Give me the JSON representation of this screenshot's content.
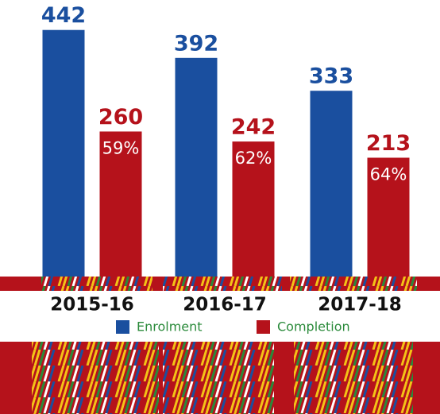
{
  "chart_data": {
    "type": "bar",
    "categories": [
      "2015-16",
      "2016-17",
      "2017-18"
    ],
    "series": [
      {
        "name": "Enrolment",
        "color": "#1a4f9f",
        "values": [
          442,
          392,
          333
        ]
      },
      {
        "name": "Completion",
        "color": "#b5121b",
        "values": [
          260,
          242,
          213
        ],
        "rate_labels": [
          "59%",
          "62%",
          "64%"
        ]
      }
    ],
    "ylim": [
      0,
      500
    ],
    "legend": "bottom"
  }
}
